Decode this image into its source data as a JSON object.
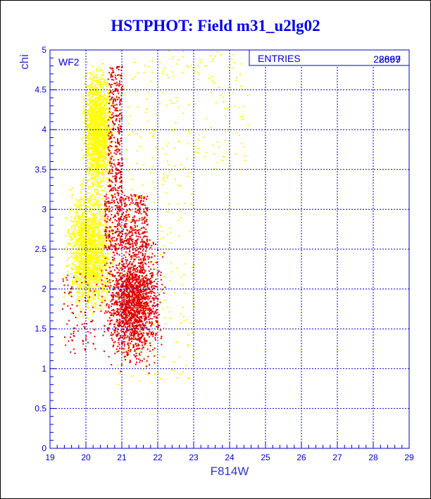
{
  "chart_data": {
    "type": "scatter",
    "title": "HSTPHOT: Field m31_u2lg02",
    "xlabel": "F814W",
    "ylabel": "chi",
    "panel_label": "WF2",
    "xlim": [
      19,
      29
    ],
    "ylim": [
      0,
      5
    ],
    "x_ticks": [
      "19",
      "20",
      "21",
      "22",
      "23",
      "24",
      "25",
      "26",
      "27",
      "28",
      "29"
    ],
    "y_ticks": [
      "0",
      "0.5",
      "1",
      "1.5",
      "2",
      "2.5",
      "3",
      "3.5",
      "4",
      "4.5",
      "5"
    ],
    "grid": true,
    "colors": {
      "axis": "#0000cc",
      "grid": "#0000cc",
      "series_yellow": "#ffff00",
      "series_red": "#dd0000",
      "title": "#0000ee"
    },
    "stats_box": {
      "label": "ENTRIES",
      "values": [
        "28697",
        "2869"
      ]
    },
    "series": [
      {
        "color": "yellow",
        "density_regions": [
          {
            "x": [
              19.8,
              20.8
            ],
            "y": [
              3.0,
              5.0
            ],
            "density": "high"
          },
          {
            "x": [
              19.3,
              20.9
            ],
            "y": [
              1.5,
              3.5
            ],
            "density": "high"
          },
          {
            "x": [
              20.8,
              23.0
            ],
            "y": [
              0.8,
              5.0
            ],
            "density": "low"
          },
          {
            "x": [
              23.0,
              24.5
            ],
            "y": [
              3.5,
              5.0
            ],
            "density": "sparse"
          }
        ]
      },
      {
        "color": "red",
        "density_regions": [
          {
            "x": [
              20.3,
              22.3
            ],
            "y": [
              0.9,
              2.8
            ],
            "density": "high"
          },
          {
            "x": [
              20.5,
              21.7
            ],
            "y": [
              2.5,
              3.2
            ],
            "density": "medium"
          },
          {
            "x": [
              20.6,
              21.0
            ],
            "y": [
              3.2,
              4.8
            ],
            "density": "low"
          },
          {
            "x": [
              19.3,
              20.3
            ],
            "y": [
              1.2,
              2.2
            ],
            "density": "sparse"
          }
        ]
      }
    ]
  }
}
